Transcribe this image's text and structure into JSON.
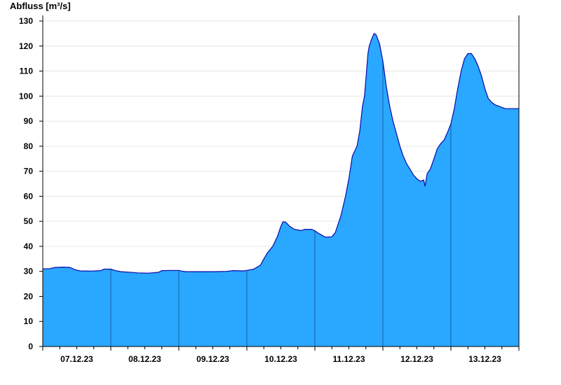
{
  "chart_data": {
    "type": "area",
    "title": "",
    "xlabel": "",
    "ylabel": "Abfluss [m³/s]",
    "ylim": [
      0,
      130
    ],
    "y_ticks": [
      0,
      10,
      20,
      30,
      40,
      50,
      60,
      70,
      80,
      90,
      100,
      110,
      120,
      130
    ],
    "x_range": [
      0,
      7
    ],
    "x_unit": "days from 06.12.23 24:00 (start of 07.12.23)",
    "x_tick_labels": [
      "07.12.23",
      "08.12.23",
      "09.12.23",
      "10.12.23",
      "11.12.23",
      "12.12.23",
      "13.12.23"
    ],
    "grid": true,
    "colors": {
      "fill": "#2aa7ff",
      "line": "#0a0aa8",
      "axis": "#000000",
      "grid": "#e6e6e6"
    },
    "series": [
      {
        "name": "",
        "points": [
          [
            0.0,
            31.0
          ],
          [
            0.1,
            31.1
          ],
          [
            0.18,
            31.6
          ],
          [
            0.3,
            31.7
          ],
          [
            0.4,
            31.6
          ],
          [
            0.48,
            30.6
          ],
          [
            0.55,
            30.2
          ],
          [
            0.7,
            30.1
          ],
          [
            0.85,
            30.3
          ],
          [
            0.9,
            30.9
          ],
          [
            1.0,
            30.9
          ],
          [
            1.07,
            30.3
          ],
          [
            1.15,
            29.9
          ],
          [
            1.25,
            29.7
          ],
          [
            1.4,
            29.4
          ],
          [
            1.55,
            29.3
          ],
          [
            1.7,
            29.6
          ],
          [
            1.75,
            30.3
          ],
          [
            1.9,
            30.4
          ],
          [
            2.0,
            30.4
          ],
          [
            2.05,
            30.1
          ],
          [
            2.1,
            29.9
          ],
          [
            2.3,
            29.9
          ],
          [
            2.5,
            29.9
          ],
          [
            2.7,
            30.0
          ],
          [
            2.8,
            30.3
          ],
          [
            2.95,
            30.2
          ],
          [
            3.0,
            30.4
          ],
          [
            3.1,
            30.9
          ],
          [
            3.2,
            32.5
          ],
          [
            3.25,
            35.0
          ],
          [
            3.3,
            37.3
          ],
          [
            3.38,
            40.0
          ],
          [
            3.45,
            44.0
          ],
          [
            3.5,
            48.0
          ],
          [
            3.53,
            49.8
          ],
          [
            3.57,
            49.7
          ],
          [
            3.63,
            48.0
          ],
          [
            3.7,
            46.8
          ],
          [
            3.8,
            46.3
          ],
          [
            3.85,
            46.8
          ],
          [
            3.95,
            46.8
          ],
          [
            4.0,
            46.2
          ],
          [
            4.05,
            45.3
          ],
          [
            4.1,
            44.5
          ],
          [
            4.15,
            43.7
          ],
          [
            4.25,
            43.8
          ],
          [
            4.3,
            45.5
          ],
          [
            4.38,
            52.0
          ],
          [
            4.45,
            60.0
          ],
          [
            4.5,
            67.0
          ],
          [
            4.55,
            76.0
          ],
          [
            4.62,
            80.0
          ],
          [
            4.66,
            86.0
          ],
          [
            4.7,
            96.0
          ],
          [
            4.73,
            100.0
          ],
          [
            4.76,
            110.0
          ],
          [
            4.78,
            117.0
          ],
          [
            4.8,
            120.0
          ],
          [
            4.83,
            122.5
          ],
          [
            4.87,
            125.0
          ],
          [
            4.9,
            124.5
          ],
          [
            4.95,
            121.0
          ],
          [
            5.0,
            114.0
          ],
          [
            5.05,
            104.0
          ],
          [
            5.1,
            96.0
          ],
          [
            5.15,
            90.0
          ],
          [
            5.2,
            85.0
          ],
          [
            5.25,
            80.0
          ],
          [
            5.3,
            76.0
          ],
          [
            5.35,
            73.0
          ],
          [
            5.4,
            70.8
          ],
          [
            5.45,
            68.5
          ],
          [
            5.5,
            67.0
          ],
          [
            5.55,
            66.0
          ],
          [
            5.6,
            66.5
          ],
          [
            5.62,
            64.0
          ],
          [
            5.65,
            69.0
          ],
          [
            5.7,
            71.0
          ],
          [
            5.75,
            75.0
          ],
          [
            5.8,
            79.0
          ],
          [
            5.85,
            81.0
          ],
          [
            5.9,
            82.5
          ],
          [
            5.95,
            85.5
          ],
          [
            6.0,
            89.0
          ],
          [
            6.05,
            95.0
          ],
          [
            6.1,
            103.0
          ],
          [
            6.15,
            110.0
          ],
          [
            6.2,
            115.0
          ],
          [
            6.25,
            117.0
          ],
          [
            6.3,
            117.0
          ],
          [
            6.35,
            115.0
          ],
          [
            6.4,
            112.0
          ],
          [
            6.45,
            108.0
          ],
          [
            6.5,
            103.0
          ],
          [
            6.55,
            99.0
          ],
          [
            6.6,
            97.5
          ],
          [
            6.65,
            96.5
          ],
          [
            6.7,
            96.0
          ],
          [
            6.75,
            95.5
          ],
          [
            6.8,
            95.0
          ],
          [
            7.0,
            95.0
          ]
        ]
      }
    ]
  }
}
